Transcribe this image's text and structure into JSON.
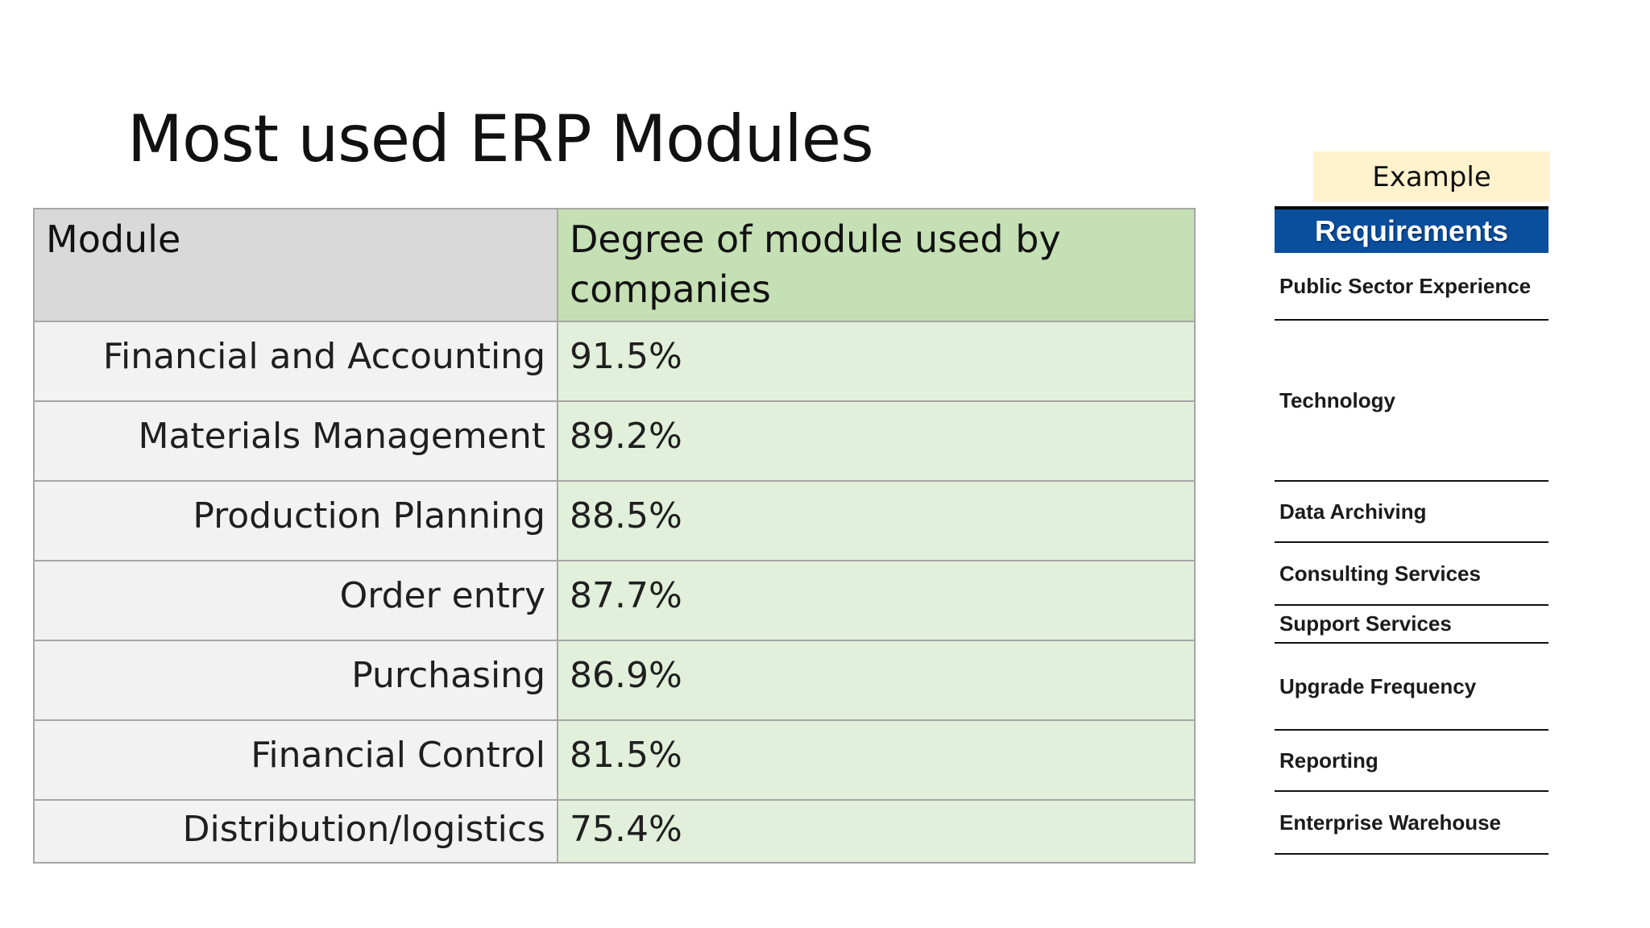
{
  "slide": {
    "title": "Most used ERP Modules"
  },
  "table": {
    "headers": {
      "module": "Module",
      "degree": "Degree of module used by companies"
    },
    "rows": [
      {
        "module": "Financial and Accounting",
        "degree": "91.5%"
      },
      {
        "module": "Materials Management",
        "degree": "89.2%"
      },
      {
        "module": "Production Planning",
        "degree": "88.5%"
      },
      {
        "module": "Order entry",
        "degree": "87.7%"
      },
      {
        "module": "Purchasing",
        "degree": "86.9%"
      },
      {
        "module": "Financial Control",
        "degree": "81.5%"
      },
      {
        "module": "Distribution/logistics",
        "degree": "75.4%"
      }
    ]
  },
  "example_panel": {
    "badge": "Example",
    "header": "Requirements",
    "items": [
      "Public Sector Experience",
      "Technology",
      "Data Archiving",
      "Consulting Services",
      "Support Services",
      "Upgrade Frequency",
      "Reporting",
      "Enterprise Warehouse"
    ]
  },
  "colors": {
    "header_module_bg": "#d9d9d9",
    "header_degree_bg": "#c5e0b4",
    "cell_module_bg": "#f2f2f2",
    "cell_degree_bg": "#e2efda",
    "example_badge_bg": "#fff2cc",
    "requirements_header_bg": "#0a4f9e"
  }
}
